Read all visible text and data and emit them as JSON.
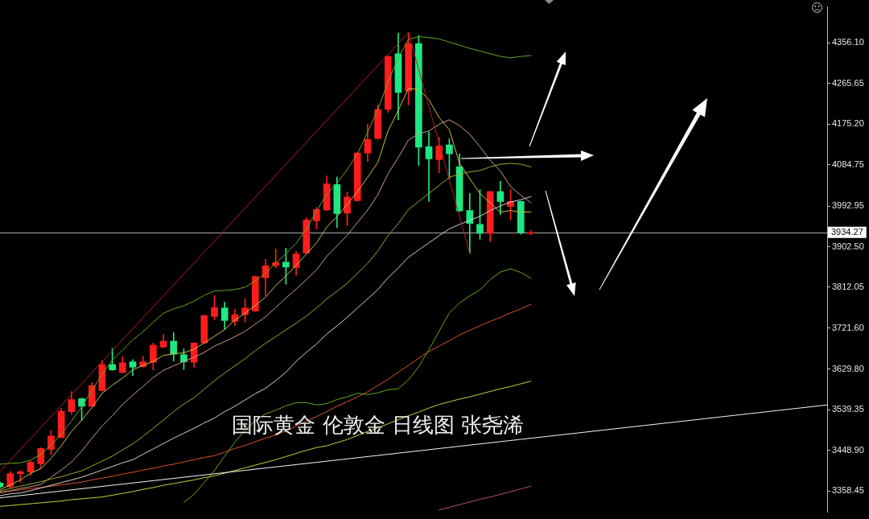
{
  "chart_data": {
    "type": "candlestick",
    "categories": [
      null,
      null,
      null,
      null,
      null,
      null,
      null,
      null,
      null,
      null,
      null,
      null,
      null,
      null,
      null,
      null,
      null,
      null,
      null,
      null,
      null,
      null,
      null,
      null,
      null,
      null,
      null,
      null,
      null,
      null,
      null,
      null,
      null,
      null,
      null,
      null,
      null,
      null,
      null,
      null,
      null,
      null,
      null,
      null,
      null,
      null,
      null,
      null,
      null,
      null,
      null,
      null,
      null,
      null,
      null,
      null,
      null,
      null,
      null,
      null,
      null,
      null,
      null,
      null,
      null,
      null,
      null,
      null,
      null,
      null,
      null,
      null,
      null,
      null,
      null,
      null,
      null,
      null,
      null,
      null,
      null,
      null
    ],
    "ohlc": [
      [
        3376,
        3379,
        3365,
        3368
      ],
      [
        3368,
        3402,
        3364,
        3397
      ],
      [
        3397,
        3404,
        3378,
        3401
      ],
      [
        3401,
        3425,
        3393,
        3422
      ],
      [
        3419,
        3455,
        3410,
        3453
      ],
      [
        3451,
        3493,
        3439,
        3481
      ],
      [
        3477,
        3542,
        3477,
        3536
      ],
      [
        3535,
        3580,
        3529,
        3562
      ],
      [
        3564,
        3565,
        3515,
        3547
      ],
      [
        3547,
        3600,
        3546,
        3593
      ],
      [
        3582,
        3649,
        3581,
        3640
      ],
      [
        3640,
        3676,
        3627,
        3628
      ],
      [
        3622,
        3658,
        3621,
        3644
      ],
      [
        3646,
        3651,
        3615,
        3634
      ],
      [
        3635,
        3658,
        3634,
        3646
      ],
      [
        3645,
        3688,
        3628,
        3683
      ],
      [
        3679,
        3707,
        3677,
        3692
      ],
      [
        3692,
        3711,
        3648,
        3663
      ],
      [
        3662,
        3675,
        3629,
        3646
      ],
      [
        3645,
        3689,
        3634,
        3688
      ],
      [
        3688,
        3750,
        3687,
        3749
      ],
      [
        3747,
        3794,
        3739,
        3767
      ],
      [
        3766,
        3779,
        3718,
        3738
      ],
      [
        3736,
        3763,
        3726,
        3751
      ],
      [
        3751,
        3786,
        3734,
        3766
      ],
      [
        3759,
        3837,
        3758,
        3836
      ],
      [
        3833,
        3874,
        3794,
        3860
      ],
      [
        3860,
        3897,
        3855,
        3867
      ],
      [
        3868,
        3899,
        3819,
        3857
      ],
      [
        3856,
        3892,
        3839,
        3886
      ],
      [
        3888,
        3967,
        3887,
        3962
      ],
      [
        3960,
        3990,
        3942,
        3985
      ],
      [
        3984,
        4060,
        3983,
        4042
      ],
      [
        4041,
        4058,
        3945,
        3976
      ],
      [
        3977,
        4024,
        3949,
        4013
      ],
      [
        4005,
        4112,
        4004,
        4111
      ],
      [
        4111,
        4175,
        4092,
        4141
      ],
      [
        4143,
        4218,
        4142,
        4208
      ],
      [
        4208,
        4327,
        4201,
        4326
      ],
      [
        4332,
        4378,
        4185,
        4246
      ],
      [
        4249,
        4380,
        4218,
        4355
      ],
      [
        4355,
        4373,
        4083,
        4124
      ],
      [
        4125,
        4158,
        4003,
        4098
      ],
      [
        4096,
        4146,
        4067,
        4127
      ],
      [
        4129,
        4143,
        4053,
        4109
      ],
      [
        4080,
        4109,
        3981,
        3982
      ],
      [
        3983,
        4021,
        3887,
        3954
      ],
      [
        3952,
        4029,
        3919,
        3932
      ],
      [
        3932,
        4026,
        3914,
        4025
      ],
      [
        4025,
        4048,
        3974,
        4003
      ],
      [
        3992,
        4029,
        3962,
        4003
      ],
      [
        4003,
        4004,
        3930,
        3934
      ],
      [
        3932,
        3938,
        3929,
        3934
      ],
      null,
      null,
      null,
      null,
      null,
      null,
      null,
      null,
      null,
      null,
      null,
      null,
      null,
      null,
      null,
      null,
      null,
      null,
      null,
      null,
      null,
      null,
      null,
      null,
      null,
      null,
      null,
      null,
      null
    ],
    "colors": [
      "#1ee882",
      "#ff1c1c",
      "#ff1c1c",
      "#ff1c1c",
      "#ff1c1c",
      "#ff1c1c",
      "#ff1c1c",
      "#ff1c1c",
      "#1ee882",
      "#ff1c1c",
      "#ff1c1c",
      "#1ee882",
      "#ff1c1c",
      "#1ee882",
      "#ff1c1c",
      "#ff1c1c",
      "#ff1c1c",
      "#1ee882",
      "#1ee882",
      "#ff1c1c",
      "#ff1c1c",
      "#ff1c1c",
      "#1ee882",
      "#ff1c1c",
      "#ff1c1c",
      "#ff1c1c",
      "#ff1c1c",
      "#ff1c1c",
      "#1ee882",
      "#ff1c1c",
      "#ff1c1c",
      "#ff1c1c",
      "#ff1c1c",
      "#1ee882",
      "#ff1c1c",
      "#ff1c1c",
      "#ff1c1c",
      "#ff1c1c",
      "#ff1c1c",
      "#1ee882",
      "#ff1c1c",
      "#1ee882",
      "#1ee882",
      "#ff1c1c",
      "#1ee882",
      "#1ee882",
      "#1ee882",
      "#1ee882",
      "#ff1c1c",
      "#1ee882",
      "#ff1c1c",
      "#1ee882",
      "#ff1c1c",
      null,
      null,
      null,
      null,
      null,
      null,
      null,
      null,
      null,
      null,
      null,
      null,
      null,
      null,
      null,
      null,
      null,
      null,
      null,
      null,
      null,
      null,
      null,
      null,
      null,
      null,
      null,
      null,
      null
    ],
    "series": [
      {
        "type": "line",
        "color": "#f4f4f4",
        "values": [
          3343,
          null,
          null,
          null,
          null,
          null,
          null,
          null,
          null,
          null,
          null,
          null,
          null,
          null,
          null,
          null,
          null,
          null,
          null,
          null,
          null,
          null,
          null,
          null,
          null,
          null,
          null,
          null,
          null,
          null,
          null,
          null,
          null,
          null,
          null,
          null,
          null,
          null,
          null,
          null,
          null,
          null,
          null,
          null,
          null,
          null,
          null,
          null,
          null,
          null,
          null,
          null,
          null,
          null,
          null,
          null,
          null,
          null,
          null,
          null,
          null,
          null,
          null,
          null,
          null,
          null,
          null,
          null,
          null,
          null,
          null,
          null,
          null,
          null,
          null,
          null,
          null,
          null,
          null,
          null,
          null,
          3550
        ]
      },
      {
        "type": "line",
        "color": "#b41e1e",
        "values": [
          3402,
          null,
          null,
          null,
          null,
          null,
          null,
          null,
          null,
          null,
          null,
          null,
          null,
          null,
          null,
          null,
          null,
          null,
          null,
          null,
          null,
          null,
          null,
          null,
          null,
          null,
          null,
          null,
          null,
          null,
          null,
          null,
          null,
          null,
          null,
          null,
          null,
          null,
          null,
          null,
          4379,
          null,
          null,
          null,
          null,
          null,
          3887,
          null,
          null,
          null,
          null,
          null,
          null,
          null,
          null,
          null,
          null,
          null,
          null,
          null,
          null,
          null,
          null,
          null,
          null,
          null,
          null,
          null,
          null,
          null,
          null,
          null,
          null,
          null,
          null,
          null,
          null,
          null,
          null,
          null,
          null,
          null
        ]
      },
      {
        "type": "line",
        "color": "#64a81c",
        "values": [
          3418,
          3420,
          3421,
          3427,
          3440,
          3461,
          3485,
          3514,
          3546,
          3582,
          3618,
          3650,
          3672,
          3695,
          3713,
          3734,
          3754,
          3764,
          3771,
          3781,
          3794,
          3804,
          3805,
          3807,
          3812,
          3826,
          3843,
          3866,
          3887,
          3910,
          3941,
          3982,
          4019,
          4044,
          4074,
          4109,
          4157,
          4208,
          4269,
          4323,
          4364,
          4370,
          4368,
          4365,
          4358,
          4351,
          4344,
          4338,
          4332,
          4326,
          4323,
          4326,
          4328,
          null,
          null,
          null,
          null,
          null,
          null,
          null,
          null,
          null,
          null,
          null,
          null,
          null,
          null,
          null,
          null,
          null,
          null,
          null,
          null,
          null,
          null,
          null,
          null,
          null,
          null,
          null,
          null,
          null
        ]
      },
      {
        "type": "line",
        "color": "#64a81c",
        "values": [
          null,
          null,
          null,
          null,
          null,
          null,
          null,
          null,
          null,
          null,
          null,
          null,
          null,
          null,
          null,
          null,
          null,
          null,
          3333,
          3351,
          3377,
          3404,
          3436,
          3467,
          3494,
          3515,
          3530,
          3538,
          3548,
          3555,
          3555,
          3550,
          3553,
          3562,
          3568,
          3576,
          3573,
          3577,
          3584,
          3586,
          3606,
          3635,
          3673,
          3714,
          3755,
          3777,
          3793,
          3806,
          3829,
          3846,
          3853,
          3845,
          3832,
          null,
          null,
          null,
          null,
          null,
          null,
          null,
          null,
          null,
          null,
          null,
          null,
          null,
          null,
          null,
          null,
          null,
          null,
          null,
          null,
          null,
          null,
          null,
          null,
          null,
          null,
          null,
          null,
          null
        ]
      },
      {
        "type": "line",
        "color": "#98ab2a",
        "values": [
          3358,
          3364,
          3369,
          3374,
          3379,
          3385,
          3390,
          3397,
          3403,
          3414,
          3425,
          3436,
          3450,
          3463,
          3480,
          3498,
          3516,
          3535,
          3552,
          3566,
          3585,
          3604,
          3621,
          3637,
          3653,
          3671,
          3687,
          3702,
          3717,
          3732,
          3748,
          3766,
          3786,
          3803,
          3821,
          3843,
          3865,
          3893,
          3927,
          3954,
          3985,
          4003,
          4021,
          4039,
          4057,
          4064,
          4069,
          4072,
          4080,
          4086,
          4088,
          4086,
          4080,
          null,
          null,
          null,
          null,
          null,
          null,
          null,
          null,
          null,
          null,
          null,
          null,
          null,
          null,
          null,
          null,
          null,
          null,
          null,
          null,
          null,
          null,
          null,
          null,
          null,
          null,
          null,
          null,
          null
        ]
      },
      {
        "type": "line",
        "color": "#ccbd4a",
        "values": [
          3361,
          3372,
          3383,
          3398,
          3408,
          3431,
          3459,
          3491,
          3516,
          3544,
          3576,
          3594,
          3610,
          3628,
          3638,
          3647,
          3660,
          3664,
          3666,
          3674,
          3688,
          3703,
          3718,
          3739,
          3754,
          3772,
          3790,
          3816,
          3837,
          3861,
          3886,
          3911,
          3946,
          3970,
          3996,
          4025,
          4057,
          4090,
          4160,
          4206,
          4255,
          4252,
          4230,
          4190,
          4163,
          4088,
          4054,
          4021,
          4000,
          3979,
          3983,
          3979,
          3980,
          null,
          null,
          null,
          null,
          null,
          null,
          null,
          null,
          null,
          null,
          null,
          null,
          null,
          null,
          null,
          null,
          null,
          null,
          null,
          null,
          null,
          null,
          null,
          null,
          null,
          null,
          null,
          null,
          null
        ]
      },
      {
        "type": "line",
        "color": "#cf9c8a",
        "values": [
          3355,
          3359,
          3364,
          3368,
          3373,
          3389,
          3405,
          3423,
          3447,
          3476,
          3503,
          3526,
          3551,
          3572,
          3591,
          3611,
          3627,
          3637,
          3647,
          3656,
          3667,
          3681,
          3691,
          3702,
          3714,
          3730,
          3746,
          3767,
          3788,
          3808,
          3829,
          3851,
          3881,
          3904,
          3928,
          3956,
          3984,
          4018,
          4065,
          4101,
          4140,
          4154,
          4160,
          4175,
          4185,
          4172,
          4153,
          4125,
          4095,
          4071,
          4036,
          4017,
          4000,
          null,
          null,
          null,
          null,
          null,
          null,
          null,
          null,
          null,
          null,
          null,
          null,
          null,
          null,
          null,
          null,
          null,
          null,
          null,
          null,
          null,
          null,
          null,
          null,
          null,
          null,
          null,
          null,
          null
        ]
      },
      {
        "type": "line",
        "color": "#d2d2d2",
        "values": [
          3348,
          3352,
          3354,
          3359,
          3365,
          3371,
          3377,
          3383,
          3389,
          3397,
          3405,
          3413,
          3421,
          3428,
          3440,
          3452,
          3464,
          3476,
          3487,
          3498,
          3510,
          3521,
          3535,
          3547,
          3561,
          3575,
          3587,
          3604,
          3623,
          3647,
          3667,
          3686,
          3708,
          3726,
          3745,
          3766,
          3786,
          3807,
          3833,
          3855,
          3879,
          3895,
          3911,
          3927,
          3942,
          3952,
          3961,
          3970,
          3983,
          3993,
          4002,
          4007,
          4014,
          null,
          null,
          null,
          null,
          null,
          null,
          null,
          null,
          null,
          null,
          null,
          null,
          null,
          null,
          null,
          null,
          null,
          null,
          null,
          null,
          null,
          null,
          null,
          null,
          null,
          null,
          null,
          null,
          null
        ]
      },
      {
        "type": "line",
        "color": "#dc5428",
        "values": [
          3355,
          3358,
          3361,
          3364,
          3366,
          3369,
          3372,
          3375,
          3378,
          3383,
          3387,
          3391,
          3396,
          3400,
          3405,
          3409,
          3414,
          3418,
          3423,
          3428,
          3433,
          3437,
          3445,
          3453,
          3460,
          3468,
          3476,
          3483,
          3492,
          3503,
          3514,
          3524,
          3535,
          3547,
          3557,
          3568,
          3579,
          3593,
          3607,
          3623,
          3638,
          3654,
          3669,
          3681,
          3693,
          3706,
          3716,
          3726,
          3736,
          3745,
          3755,
          3764,
          3774,
          null,
          null,
          null,
          null,
          null,
          null,
          null,
          null,
          null,
          null,
          null,
          null,
          null,
          null,
          null,
          null,
          null,
          null,
          null,
          null,
          null,
          null,
          null,
          null,
          null,
          null,
          null,
          null,
          null
        ]
      },
      {
        "type": "line",
        "color": "#c9cf3a",
        "values": [
          3324,
          3326,
          3328,
          3330,
          3332,
          3334,
          3336,
          3339,
          3341,
          3343,
          3345,
          3349,
          3353,
          3357,
          3362,
          3366,
          3371,
          3375,
          3379,
          3383,
          3388,
          3392,
          3398,
          3404,
          3410,
          3416,
          3422,
          3428,
          3435,
          3442,
          3449,
          3455,
          3459,
          3466,
          3473,
          3482,
          3491,
          3499,
          3508,
          3517,
          3526,
          3534,
          3543,
          3551,
          3557,
          3563,
          3568,
          3574,
          3580,
          3586,
          3591,
          3597,
          3603,
          null,
          null,
          null,
          null,
          null,
          null,
          null,
          null,
          null,
          null,
          null,
          null,
          null,
          null,
          null,
          null,
          null,
          null,
          null,
          null,
          null,
          null,
          null,
          null,
          null,
          null,
          null,
          null,
          null
        ]
      },
      {
        "type": "line",
        "color": "#b84d78",
        "values": [
          null,
          null,
          null,
          null,
          null,
          null,
          null,
          null,
          null,
          null,
          null,
          null,
          null,
          null,
          null,
          null,
          null,
          null,
          null,
          null,
          null,
          null,
          null,
          null,
          null,
          null,
          null,
          null,
          null,
          null,
          null,
          null,
          null,
          null,
          null,
          null,
          null,
          null,
          null,
          null,
          null,
          null,
          null,
          3316,
          3322,
          3328,
          3334,
          3340,
          3345,
          3351,
          3357,
          3363,
          3369,
          null,
          null,
          null,
          null,
          null,
          null,
          null,
          null,
          null,
          null,
          null,
          null,
          null,
          null,
          null,
          null,
          null,
          null,
          null,
          null,
          null,
          null,
          null,
          null,
          null,
          null,
          null,
          null,
          null
        ]
      }
    ],
    "ylim": [
      3311.4,
      4436.3
    ],
    "yticks": [
      {
        "value": 4356.1,
        "label": "4356.10"
      },
      4265.65,
      {
        "value": 4175.2,
        "label": "4175.20"
      },
      4084.75,
      3992.95,
      {
        "value": 3902.5,
        "label": "3902.50"
      },
      3812.05,
      {
        "value": 3721.6,
        "label": "3721.60"
      },
      {
        "value": 3629.8,
        "label": "3629.80"
      },
      3539.35,
      {
        "value": 3448.9,
        "label": "3448.90"
      },
      3358.45
    ],
    "tick_labels": "y",
    "ref_lines": [
      {
        "axis": "y",
        "value": 3934.27,
        "label": "3934.27",
        "color": "#a8a8a8"
      }
    ],
    "annotations": [
      "国际黄金 伦敦金 日线图 张尧浠"
    ]
  }
}
